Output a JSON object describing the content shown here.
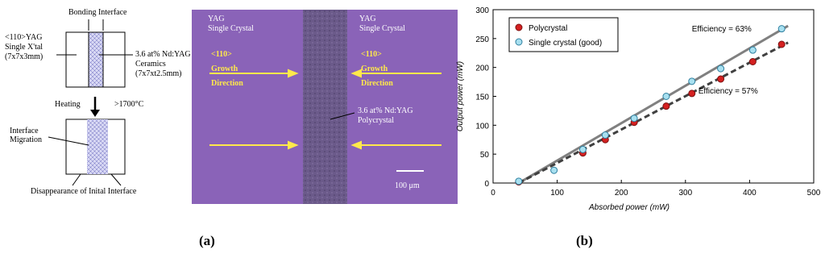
{
  "panel_labels": [
    "(a)",
    "(b)"
  ],
  "diagram": {
    "bonding_interface": "Bonding Interface",
    "left_label": [
      "<110>YAG",
      "Single X'tal",
      "(7x7x3mm)"
    ],
    "right_label": [
      "3.6 at% Nd:YAG",
      "Ceramics",
      "(7x7xt2.5mm)"
    ],
    "heating": "Heating",
    "temperature": ">1700°C",
    "interface_migration": [
      "Interface",
      "Migration"
    ],
    "disappearance": "Disappearance of Inital Interface"
  },
  "micrograph": {
    "left_crystal": [
      "YAG",
      "Single Crystal"
    ],
    "right_crystal": [
      "YAG",
      "Single Crystal"
    ],
    "left_direction": [
      "<110>",
      "Growth",
      "Direction"
    ],
    "right_direction": [
      "<110>",
      "Growth",
      "Direction"
    ],
    "polycrystal": [
      "3.6 at% Nd:YAG",
      "Polycrystal"
    ],
    "scale_bar": "100 μm"
  },
  "chart_data": {
    "type": "scatter",
    "xlabel": "Absorbed power (mW)",
    "ylabel": "Output power (mW)",
    "xlim": [
      0,
      500
    ],
    "xticks": [
      0,
      100,
      200,
      300,
      400,
      500
    ],
    "ylim": [
      0,
      300
    ],
    "yticks": [
      0,
      50,
      100,
      150,
      200,
      250,
      300
    ],
    "legend": "top-left",
    "series": [
      {
        "name": "Polycrystal",
        "color": "#d42020",
        "x": [
          40,
          140,
          175,
          220,
          270,
          310,
          355,
          405,
          450
        ],
        "values": [
          2,
          52,
          75,
          105,
          133,
          155,
          180,
          210,
          240
        ]
      },
      {
        "name": "Single crystal (good)",
        "color": "#a8e0f0",
        "x": [
          40,
          95,
          140,
          175,
          220,
          270,
          310,
          355,
          405,
          450
        ],
        "values": [
          3,
          22,
          58,
          83,
          112,
          150,
          176,
          198,
          230,
          267
        ]
      }
    ],
    "fit_lines": [
      {
        "color": "#808080",
        "dashed": false,
        "x": [
          40,
          460
        ],
        "values": [
          0,
          272
        ]
      },
      {
        "color": "#404040",
        "dashed": true,
        "x": [
          40,
          460
        ],
        "values": [
          0,
          243
        ]
      }
    ],
    "annotations": [
      "Efficiency = 63%",
      "Efficiency = 57%"
    ]
  }
}
